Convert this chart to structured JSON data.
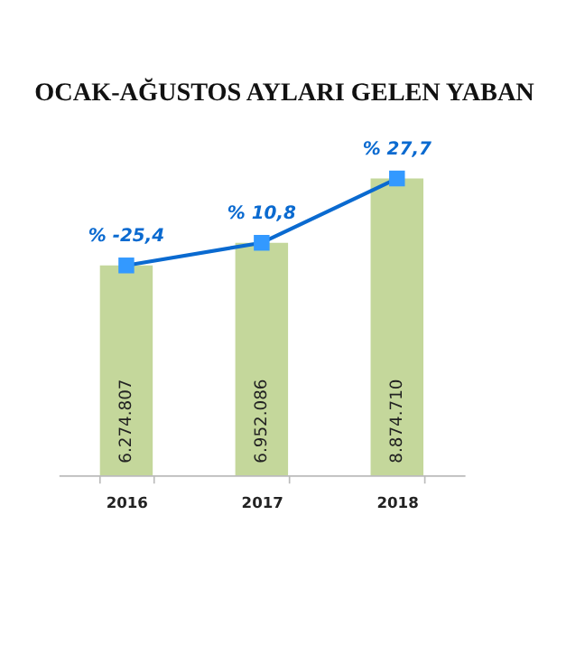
{
  "chart_data": {
    "type": "bar",
    "title": "OCAK-AĞUSTOS AYLARI GELEN YABAN",
    "categories": [
      "2016",
      "2017",
      "2018"
    ],
    "series": [
      {
        "color": "#c4d79b",
        "values": [
          6274807,
          6952086,
          8874710
        ],
        "value_labels": [
          "6.274.807",
          "6.952.086",
          "8.874.710"
        ]
      },
      {
        "type": "line",
        "color": "#0a6ad0",
        "values": [
          6274807,
          6952086,
          8874710
        ],
        "marker": "square"
      }
    ],
    "annotations": [
      {
        "text": "% -25,4",
        "x": "2016",
        "y": 6274807
      },
      {
        "text": "% 10,8",
        "x": "2017",
        "y": 6952086
      },
      {
        "text": "% 27,7",
        "x": "2018",
        "y": 8874710
      }
    ]
  }
}
